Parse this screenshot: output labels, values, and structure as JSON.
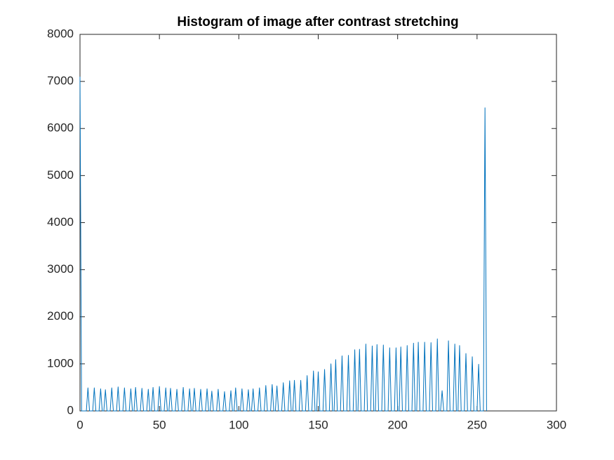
{
  "chart_data": {
    "type": "line",
    "title": "Histogram of image after contrast stretching",
    "color": "#0072bd",
    "x": [
      0,
      1,
      4,
      5,
      6,
      8,
      9,
      10,
      12,
      13,
      14,
      15,
      16,
      17,
      19,
      20,
      21,
      23,
      24,
      25,
      27,
      28,
      29,
      31,
      32,
      33,
      34,
      35,
      36,
      38,
      39,
      40,
      42,
      43,
      44,
      45,
      46,
      47,
      49,
      50,
      51,
      53,
      54,
      55,
      56,
      57,
      58,
      60,
      61,
      62,
      64,
      65,
      66,
      68,
      69,
      70,
      71,
      72,
      73,
      75,
      76,
      77,
      79,
      80,
      81,
      82,
      83,
      84,
      86,
      87,
      88,
      90,
      91,
      92,
      94,
      95,
      96,
      97,
      98,
      99,
      101,
      102,
      103,
      105,
      106,
      107,
      108,
      109,
      110,
      112,
      113,
      114,
      116,
      117,
      118,
      120,
      121,
      122,
      123,
      124,
      125,
      127,
      128,
      129,
      131,
      132,
      133,
      134,
      135,
      136,
      138,
      139,
      140,
      142,
      143,
      144,
      146,
      147,
      148,
      149,
      150,
      151,
      153,
      154,
      155,
      157,
      158,
      159,
      160,
      161,
      162,
      164,
      165,
      166,
      168,
      169,
      170,
      172,
      173,
      174,
      175,
      176,
      177,
      179,
      180,
      181,
      183,
      184,
      185,
      186,
      187,
      188,
      190,
      191,
      192,
      194,
      195,
      196,
      198,
      199,
      200,
      201,
      202,
      203,
      205,
      206,
      207,
      209,
      210,
      211,
      212,
      213,
      214,
      216,
      217,
      218,
      220,
      221,
      222,
      224,
      225,
      226,
      227,
      228,
      229,
      231,
      232,
      233,
      235,
      236,
      237,
      238,
      239,
      240,
      242,
      243,
      244,
      246,
      247,
      248,
      250,
      251,
      252,
      254,
      255,
      256
    ],
    "values": [
      7100,
      0,
      0,
      490,
      0,
      0,
      490,
      0,
      0,
      470,
      0,
      0,
      450,
      0,
      0,
      490,
      0,
      0,
      510,
      0,
      0,
      490,
      0,
      0,
      470,
      0,
      0,
      500,
      0,
      0,
      480,
      0,
      0,
      460,
      0,
      0,
      500,
      0,
      0,
      520,
      0,
      0,
      490,
      0,
      0,
      480,
      0,
      0,
      460,
      0,
      0,
      500,
      0,
      0,
      470,
      0,
      0,
      480,
      0,
      0,
      460,
      0,
      0,
      470,
      0,
      0,
      420,
      0,
      0,
      460,
      0,
      0,
      410,
      0,
      0,
      430,
      0,
      0,
      490,
      0,
      0,
      470,
      0,
      0,
      450,
      0,
      0,
      470,
      0,
      0,
      490,
      0,
      0,
      540,
      0,
      0,
      560,
      0,
      0,
      530,
      0,
      0,
      600,
      0,
      0,
      640,
      0,
      0,
      650,
      0,
      0,
      650,
      0,
      0,
      750,
      0,
      0,
      850,
      0,
      0,
      830,
      0,
      0,
      880,
      0,
      0,
      1000,
      0,
      0,
      1090,
      0,
      0,
      1170,
      0,
      0,
      1180,
      0,
      0,
      1300,
      0,
      0,
      1310,
      0,
      0,
      1420,
      0,
      0,
      1380,
      0,
      0,
      1410,
      0,
      0,
      1400,
      0,
      0,
      1340,
      0,
      0,
      1340,
      0,
      0,
      1360,
      0,
      0,
      1390,
      0,
      0,
      1440,
      0,
      0,
      1460,
      0,
      0,
      1460,
      0,
      0,
      1450,
      0,
      0,
      1530,
      0,
      0,
      430,
      0,
      0,
      1490,
      0,
      0,
      1420,
      0,
      0,
      1390,
      0,
      0,
      1220,
      0,
      0,
      1150,
      0,
      0,
      990,
      0,
      0,
      6440,
      0
    ],
    "xlim": [
      0,
      300
    ],
    "xticks": [
      0,
      50,
      100,
      150,
      200,
      250,
      300
    ],
    "ylim": [
      0,
      8000
    ],
    "yticks": [
      0,
      1000,
      2000,
      3000,
      4000,
      5000,
      6000,
      7000,
      8000
    ]
  }
}
